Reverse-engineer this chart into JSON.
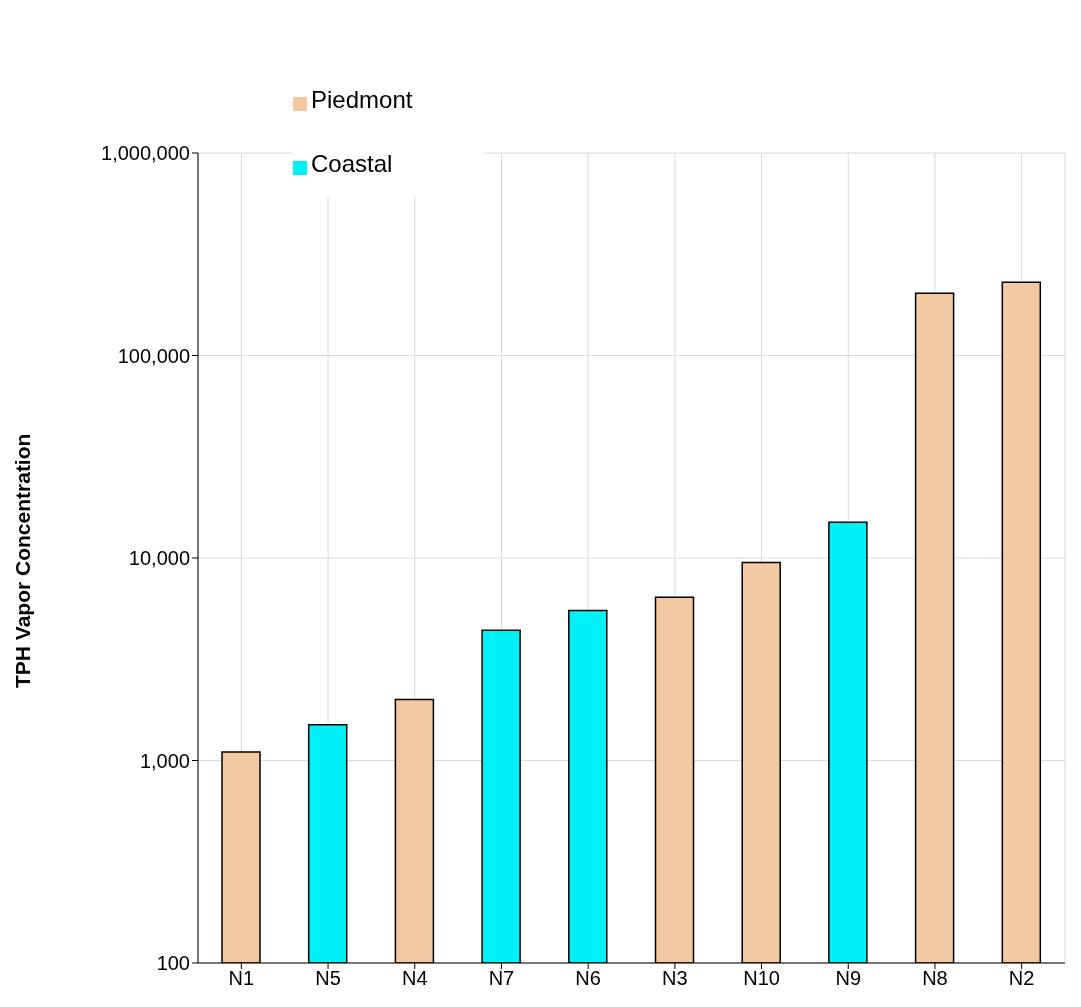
{
  "chart_data": {
    "type": "bar",
    "ylabel": "TPH Vapor Concentration",
    "categories": [
      "N1",
      "N5",
      "N4",
      "N7",
      "N6",
      "N3",
      "N10",
      "N9",
      "N8",
      "N2"
    ],
    "series": [
      {
        "name": "Piedmont",
        "color": "#f2c9a0",
        "values": [
          1100,
          null,
          2000,
          null,
          null,
          6400,
          9500,
          null,
          203000,
          230000
        ]
      },
      {
        "name": "Coastal",
        "color": "#00f0f8",
        "values": [
          null,
          1500,
          null,
          4400,
          5500,
          null,
          null,
          15000,
          null,
          null
        ]
      }
    ],
    "log": true,
    "ylim": [
      100,
      1000000
    ],
    "yticks": [
      {
        "value": 100,
        "label": "100"
      },
      {
        "value": 1000,
        "label": "1,000"
      },
      {
        "value": 10000,
        "label": "10,000"
      },
      {
        "value": 100000,
        "label": "100,000"
      },
      {
        "value": 1000000,
        "label": "1,000,000"
      }
    ],
    "grid": true,
    "legend": "top left"
  }
}
